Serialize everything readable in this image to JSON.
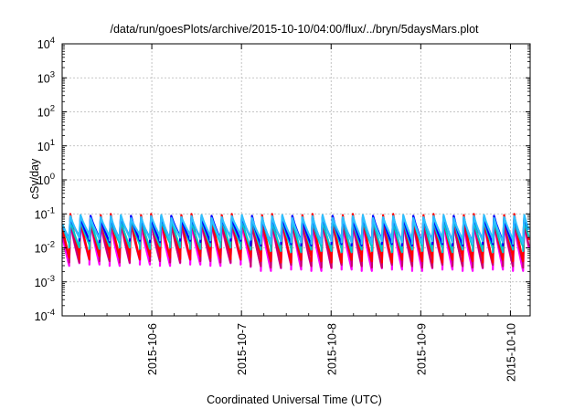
{
  "chart_data": {
    "type": "line",
    "title": "/data/run/goesPlots/archive/2015-10-10/04:00/flux/../bryn/5daysMars.plot",
    "xlabel": "Coordinated Universal Time (UTC)",
    "ylabel": "cSv/day",
    "y_scale": "log",
    "ylim_exponent": [
      -4,
      4
    ],
    "xlim_days": [
      0,
      5.22
    ],
    "y_ticks": [
      {
        "base": "10",
        "exp": "4"
      },
      {
        "base": "10",
        "exp": "3"
      },
      {
        "base": "10",
        "exp": "2"
      },
      {
        "base": "10",
        "exp": "1"
      },
      {
        "base": "10",
        "exp": "0"
      },
      {
        "base": "10",
        "exp": "-1"
      },
      {
        "base": "10",
        "exp": "-2"
      },
      {
        "base": "10",
        "exp": "-3"
      },
      {
        "base": "10",
        "exp": "-4"
      }
    ],
    "x_ticks": [
      "2015-10-6",
      "2015-10-7",
      "2015-10-8",
      "2015-10-9",
      "2015-10-10"
    ],
    "x_tick_days": [
      1,
      2,
      3,
      4,
      5
    ],
    "grid": true,
    "legend": "none",
    "sawtooth_period_days": 0.1125,
    "series": [
      {
        "color": "#ff00ff",
        "peak_exp": -1.25,
        "trough_exp": -2.45,
        "trough_exp_late": -2.6
      },
      {
        "color": "#c8006e",
        "peak_exp": -1.2,
        "trough_exp": -2.35,
        "trough_exp_late": -2.5
      },
      {
        "color": "#ff0000",
        "peak_exp": -1.05,
        "trough_exp": -2.25,
        "trough_exp_late": -2.35
      },
      {
        "color": "#00c8c8",
        "peak_exp": -1.15,
        "trough_exp": -1.95,
        "trough_exp_late": -2.05
      },
      {
        "color": "#0000ff",
        "peak_exp": -1.1,
        "trough_exp": -1.75,
        "trough_exp_late": -1.85
      },
      {
        "color": "#2ec0ff",
        "peak_exp": -1.08,
        "trough_exp": -1.7,
        "trough_exp_late": -1.8
      }
    ]
  }
}
